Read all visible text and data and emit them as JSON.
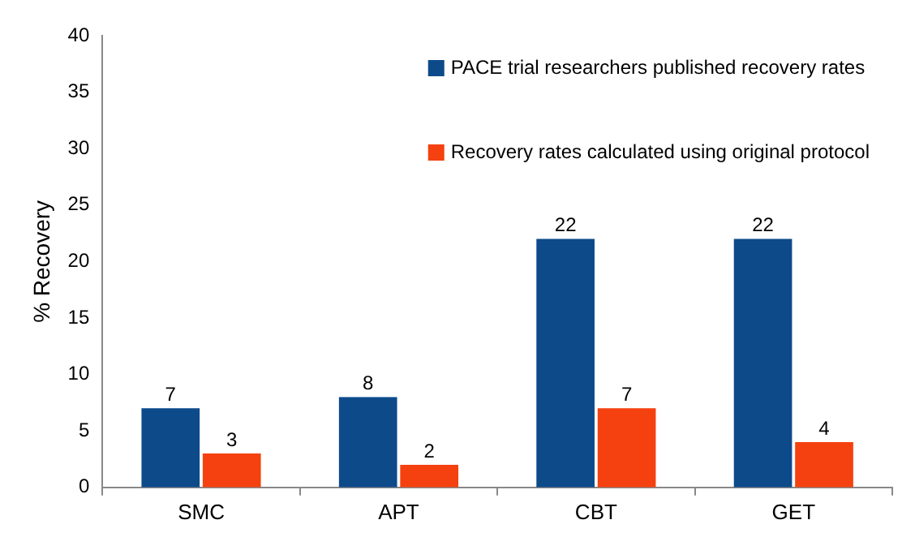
{
  "chart_data": {
    "type": "bar",
    "ylabel": "% Recovery",
    "categories": [
      "SMC",
      "APT",
      "CBT",
      "GET"
    ],
    "series": [
      {
        "name": "PACE trial researchers published recovery rates",
        "color": "#0d4a8a",
        "values": [
          7,
          8,
          22,
          22
        ]
      },
      {
        "name": "Recovery rates calculated using original protocol",
        "color": "#f5410f",
        "values": [
          3,
          2,
          7,
          4
        ]
      }
    ],
    "ylim": [
      0,
      40
    ],
    "yticks": [
      0,
      5,
      10,
      15,
      20,
      25,
      30,
      35,
      40
    ],
    "grid": false,
    "legend": "top right",
    "data_labels": true
  }
}
